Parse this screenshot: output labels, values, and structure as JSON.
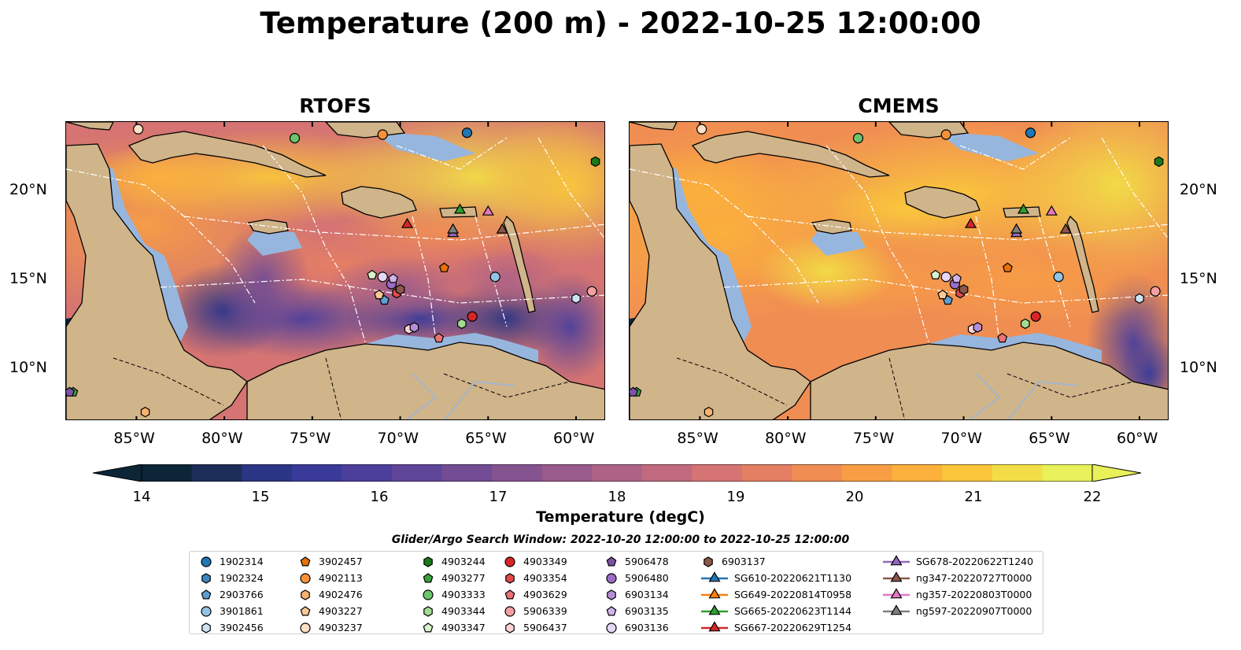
{
  "title": "Temperature (200 m) - 2022-10-25 12:00:00",
  "panels": [
    {
      "title": "RTOFS",
      "style": "rtofs"
    },
    {
      "title": "CMEMS",
      "style": "cmems"
    }
  ],
  "axes": {
    "x_ticks": [
      "85°W",
      "80°W",
      "75°W",
      "70°W",
      "65°W",
      "60°W"
    ],
    "y_ticks": [
      "20°N",
      "15°N",
      "10°N"
    ]
  },
  "colorbar": {
    "label": "Temperature (degC)",
    "min": 14,
    "max": 22,
    "ticks": [
      "14",
      "15",
      "16",
      "17",
      "18",
      "19",
      "20",
      "21",
      "22"
    ],
    "colors": [
      "#0c2537",
      "#1c2e58",
      "#2a3585",
      "#3a3a9a",
      "#4c3f9c",
      "#5f4598",
      "#724c94",
      "#855390",
      "#995a8c",
      "#ad6286",
      "#c26a7d",
      "#d57472",
      "#e57f63",
      "#f08d53",
      "#f79e45",
      "#fbb13c",
      "#f9c63c",
      "#f2dd46",
      "#e8f05a"
    ]
  },
  "search_window": "Glider/Argo Search Window: 2022-10-20 12:00:00 to 2022-10-25 12:00:00",
  "legend": [
    {
      "label": "1902314",
      "marker": "circle",
      "color": "#1f77b4"
    },
    {
      "label": "1902324",
      "marker": "hexagon",
      "color": "#3a86c0"
    },
    {
      "label": "2903766",
      "marker": "pentagon",
      "color": "#5f9fd0"
    },
    {
      "label": "3901861",
      "marker": "circle",
      "color": "#93c4e6"
    },
    {
      "label": "3902456",
      "marker": "hexagon",
      "color": "#cde3f3"
    },
    {
      "label": "3902457",
      "marker": "pentagon",
      "color": "#e8710a"
    },
    {
      "label": "4902113",
      "marker": "circle",
      "color": "#f6913a"
    },
    {
      "label": "4902476",
      "marker": "hexagon",
      "color": "#f9b26e"
    },
    {
      "label": "4903227",
      "marker": "pentagon",
      "color": "#fbc895"
    },
    {
      "label": "4903237",
      "marker": "circle",
      "color": "#fde0c5"
    },
    {
      "label": "4903244",
      "marker": "hexagon",
      "color": "#1a7a1a"
    },
    {
      "label": "4903277",
      "marker": "pentagon",
      "color": "#3aa03a"
    },
    {
      "label": "4903333",
      "marker": "circle",
      "color": "#6cc46c"
    },
    {
      "label": "4903344",
      "marker": "hexagon",
      "color": "#a2dc93"
    },
    {
      "label": "4903347",
      "marker": "pentagon",
      "color": "#d8f3cc"
    },
    {
      "label": "4903349",
      "marker": "circle",
      "color": "#d62728"
    },
    {
      "label": "4903354",
      "marker": "hexagon",
      "color": "#e24a4a"
    },
    {
      "label": "4903629",
      "marker": "pentagon",
      "color": "#ec7373"
    },
    {
      "label": "5906339",
      "marker": "circle",
      "color": "#f4a0a0"
    },
    {
      "label": "5906437",
      "marker": "hexagon",
      "color": "#fcd2d2"
    },
    {
      "label": "5906478",
      "marker": "pentagon",
      "color": "#7d52a8"
    },
    {
      "label": "5906480",
      "marker": "circle",
      "color": "#9b6dc6"
    },
    {
      "label": "6903134",
      "marker": "hexagon",
      "color": "#b68fd8"
    },
    {
      "label": "6903135",
      "marker": "pentagon",
      "color": "#ceb3e8"
    },
    {
      "label": "6903136",
      "marker": "circle",
      "color": "#e6d8f5"
    },
    {
      "label": "6903137",
      "marker": "hexagon",
      "color": "#8c564b"
    },
    {
      "label": "SG610-20220621T1130",
      "marker": "triangle-line",
      "color": "#1f77b4"
    },
    {
      "label": "SG649-20220814T0958",
      "marker": "triangle-line",
      "color": "#ff7f0e"
    },
    {
      "label": "SG665-20220623T1144",
      "marker": "triangle-line",
      "color": "#2ca02c"
    },
    {
      "label": "SG667-20220629T1254",
      "marker": "triangle-line",
      "color": "#d62728"
    },
    {
      "label": "SG678-20220622T1240",
      "marker": "triangle-line",
      "color": "#9467bd"
    },
    {
      "label": "ng347-20220727T0000",
      "marker": "triangle-line",
      "color": "#8c564b"
    },
    {
      "label": "ng357-20220803T0000",
      "marker": "triangle-line",
      "color": "#e377c2"
    },
    {
      "label": "ng597-20220907T0000",
      "marker": "triangle-line",
      "color": "#7f7f7f"
    }
  ]
}
